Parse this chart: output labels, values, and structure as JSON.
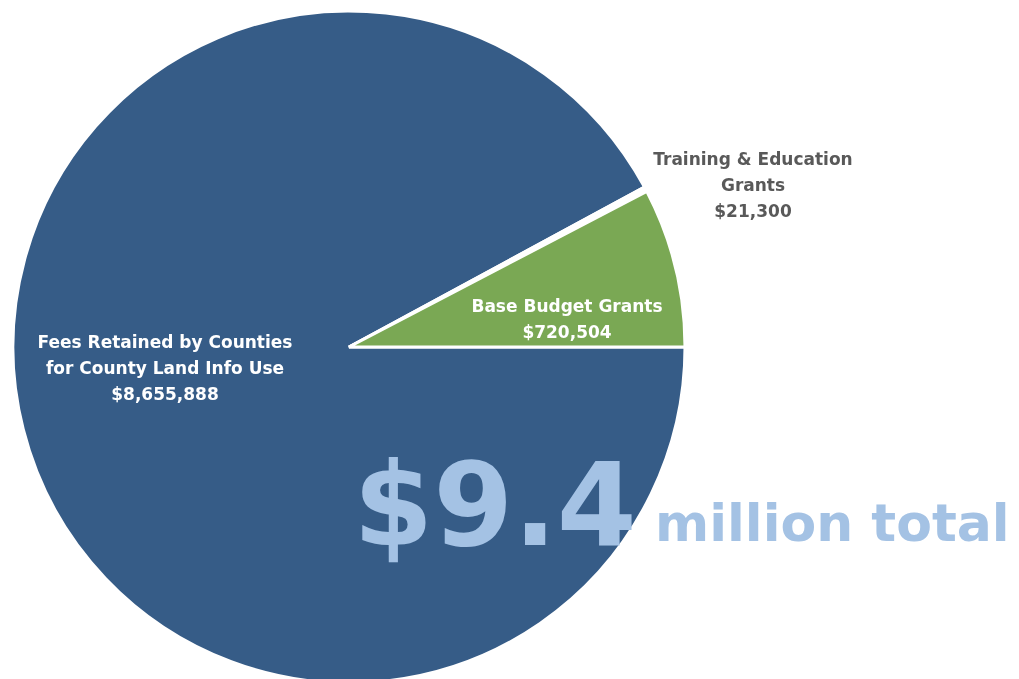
{
  "chart_data": {
    "type": "pie",
    "categories": [
      "Fees Retained by Counties for County Land Info Use",
      "Training & Education Grants",
      "Base Budget Grants"
    ],
    "values": [
      8655888,
      21300,
      720504
    ],
    "colors": [
      "#365c87",
      "#ffffff",
      "#7aa854"
    ],
    "value_labels": [
      "$8,655,888",
      "$21,300",
      "$720,504"
    ],
    "annotations": [
      "$9.4",
      "million total"
    ]
  }
}
